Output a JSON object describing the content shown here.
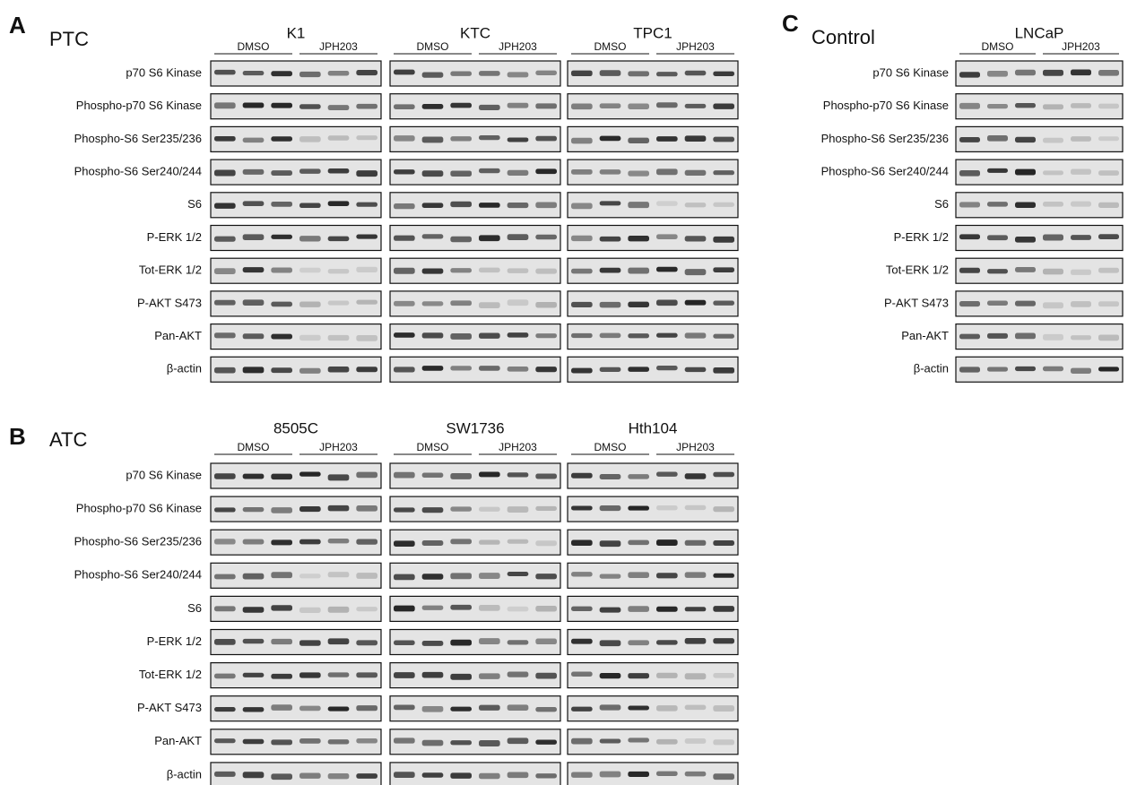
{
  "panels": [
    {
      "letter": "A",
      "title": "PTC",
      "proteins": [
        "p70 S6 Kinase",
        "Phospho-p70 S6 Kinase",
        "Phospho-S6 Ser235/236",
        "Phospho-S6 Ser240/244",
        "S6",
        "P-ERK 1/2",
        "Tot-ERK 1/2",
        "P-AKT S473",
        "Pan-AKT",
        "β-actin"
      ],
      "cell_lines": [
        {
          "name": "K1",
          "groups": [
            "DMSO",
            "JPH203"
          ]
        },
        {
          "name": "KTC",
          "groups": [
            "DMSO",
            "JPH203"
          ]
        },
        {
          "name": "TPC1",
          "groups": [
            "DMSO",
            "JPH203"
          ]
        }
      ]
    },
    {
      "letter": "B",
      "title": "ATC",
      "proteins": [
        "p70 S6 Kinase",
        "Phospho-p70 S6 Kinase",
        "Phospho-S6 Ser235/236",
        "Phospho-S6 Ser240/244",
        "S6",
        "P-ERK 1/2",
        "Tot-ERK 1/2",
        "P-AKT S473",
        "Pan-AKT",
        "β-actin"
      ],
      "cell_lines": [
        {
          "name": "8505C",
          "groups": [
            "DMSO",
            "JPH203"
          ]
        },
        {
          "name": "SW1736",
          "groups": [
            "DMSO",
            "JPH203"
          ]
        },
        {
          "name": "Hth104",
          "groups": [
            "DMSO",
            "JPH203"
          ]
        }
      ]
    },
    {
      "letter": "C",
      "title": "Control",
      "proteins": [
        "p70 S6 Kinase",
        "Phospho-p70 S6 Kinase",
        "Phospho-S6 Ser235/236",
        "Phospho-S6 Ser240/244",
        "S6",
        "P-ERK 1/2",
        "Tot-ERK 1/2",
        "P-AKT S473",
        "Pan-AKT",
        "β-actin"
      ],
      "cell_lines": [
        {
          "name": "LNCaP",
          "groups": [
            "DMSO",
            "JPH203"
          ]
        }
      ]
    }
  ]
}
